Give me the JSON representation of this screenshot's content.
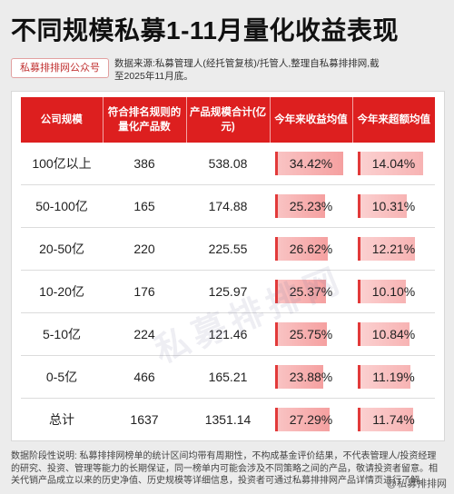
{
  "title": "不同规模私募1-11月量化收益表现",
  "source_badge": "私募排排网公众号",
  "source_note": "数据来源:私募管理人(经托管复核)/托管人,整理自私募排排网,截至2025年11月底。",
  "table": {
    "headers": [
      "公司规模",
      "符合排名规则的量化产品数",
      "产品规模合计(亿元)",
      "今年来收益均值",
      "今年来超额均值"
    ],
    "rows": [
      {
        "scale": "100亿以上",
        "count": "386",
        "size": "538.08",
        "return": "34.42%",
        "excess": "14.04%",
        "return_value": 34.42,
        "excess_value": 14.04
      },
      {
        "scale": "50-100亿",
        "count": "165",
        "size": "174.88",
        "return": "25.23%",
        "excess": "10.31%",
        "return_value": 25.23,
        "excess_value": 10.31
      },
      {
        "scale": "20-50亿",
        "count": "220",
        "size": "225.55",
        "return": "26.62%",
        "excess": "12.21%",
        "return_value": 26.62,
        "excess_value": 12.21
      },
      {
        "scale": "10-20亿",
        "count": "176",
        "size": "125.97",
        "return": "25.37%",
        "excess": "10.10%",
        "return_value": 25.37,
        "excess_value": 10.1
      },
      {
        "scale": "5-10亿",
        "count": "224",
        "size": "121.46",
        "return": "25.75%",
        "excess": "10.84%",
        "return_value": 25.75,
        "excess_value": 10.84
      },
      {
        "scale": "0-5亿",
        "count": "466",
        "size": "165.21",
        "return": "23.88%",
        "excess": "11.19%",
        "return_value": 23.88,
        "excess_value": 11.19
      },
      {
        "scale": "总计",
        "count": "1637",
        "size": "1351.14",
        "return": "27.29%",
        "excess": "11.74%",
        "return_value": 27.29,
        "excess_value": 11.74
      }
    ]
  },
  "watermark": "私募排排网",
  "footnote": "数据阶段性说明: 私募排排网榜单的统计区间均带有周期性，不构成基金评价结果，不代表管理人/投资经理的研究、投资、管理等能力的长期保证，同一榜单内可能会涉及不同策略之间的产品，敬请投资者留意。相关代销产品成立以来的历史净值、历史规模等详细信息，投资者可通过私募排排网产品详情页进行了解。",
  "footer_brand": "@私募排排网",
  "colors": {
    "accent": "#dd1f1f",
    "bar": "#f5a0a0"
  }
}
